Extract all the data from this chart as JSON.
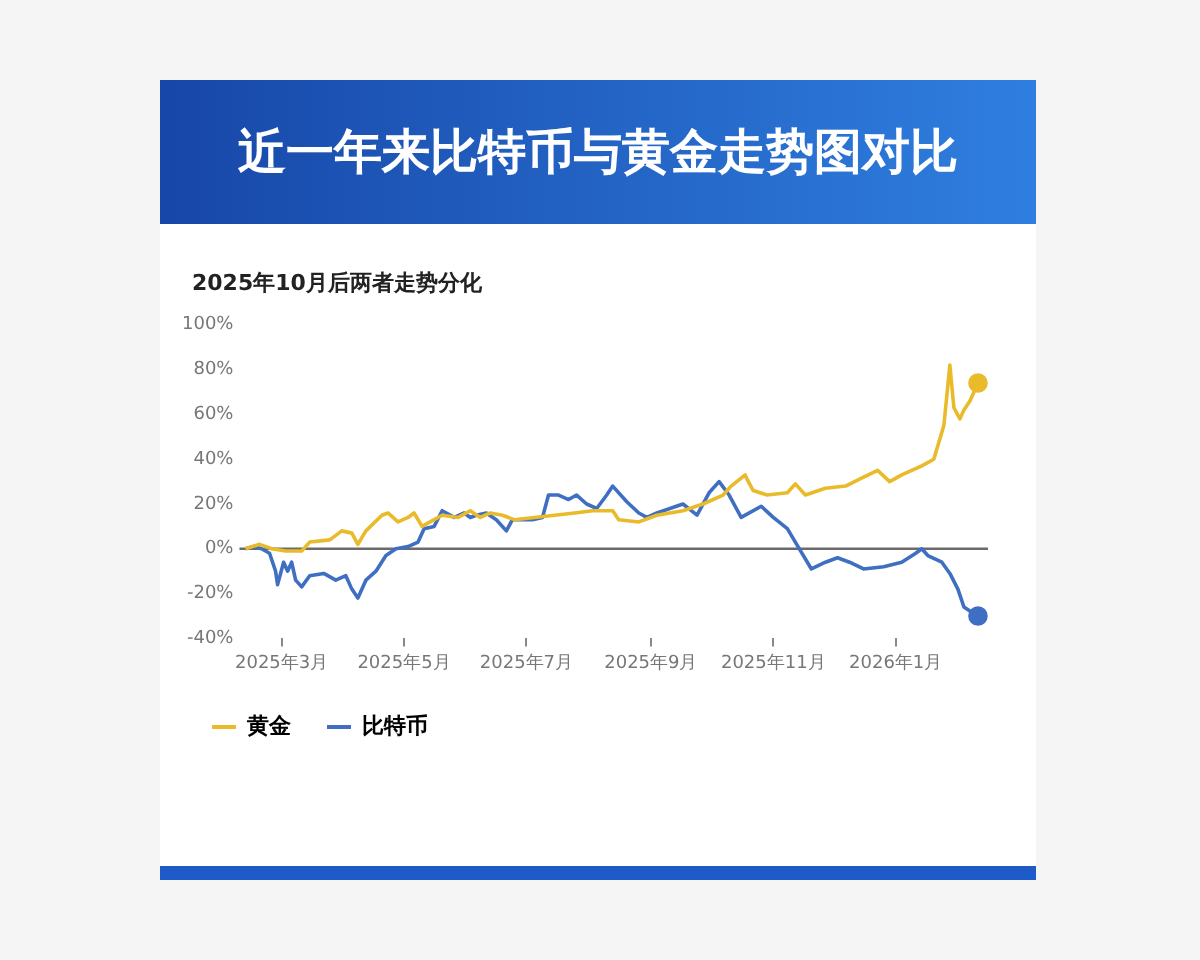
{
  "chart_data": {
    "type": "line",
    "title": "近一年来比特币与黄金走势图对比",
    "subtitle": "2025年10月后两者走势分化",
    "xlim": [
      "2025-02-08",
      "2026-02-16"
    ],
    "xticks": [
      {
        "value": "2025-03-01",
        "label": "2025年3月"
      },
      {
        "value": "2025-05-01",
        "label": "2025年5月"
      },
      {
        "value": "2025-07-01",
        "label": "2025年7月"
      },
      {
        "value": "2025-09-01",
        "label": "2025年9月"
      },
      {
        "value": "2025-11-01",
        "label": "2025年11月"
      },
      {
        "value": "2026-01-01",
        "label": "2026年1月"
      }
    ],
    "ylim": [
      -40,
      100
    ],
    "yticks": [
      {
        "value": -40,
        "label": "-40%"
      },
      {
        "value": -20,
        "label": "-20%"
      },
      {
        "value": 0,
        "label": "0%"
      },
      {
        "value": 20,
        "label": "20%"
      },
      {
        "value": 40,
        "label": "40%"
      },
      {
        "value": 60,
        "label": "60%"
      },
      {
        "value": 80,
        "label": "80%"
      },
      {
        "value": 100,
        "label": "100%"
      }
    ],
    "ref_lines": [
      {
        "axis": "y",
        "value": 0,
        "color": "#6b6b6b"
      }
    ],
    "legend": "bottom",
    "grid": false,
    "marker": "none",
    "line_style": "solid",
    "series": [
      {
        "name": "黄金",
        "color": "#e9bb2b",
        "x": [
          "2025-02-11",
          "2025-02-18",
          "2025-02-24",
          "2025-03-03",
          "2025-03-11",
          "2025-03-15",
          "2025-03-25",
          "2025-03-31",
          "2025-04-05",
          "2025-04-08",
          "2025-04-12",
          "2025-04-20",
          "2025-04-23",
          "2025-04-28",
          "2025-05-03",
          "2025-05-06",
          "2025-05-10",
          "2025-05-14",
          "2025-05-20",
          "2025-05-28",
          "2025-06-03",
          "2025-06-08",
          "2025-06-13",
          "2025-06-19",
          "2025-06-25",
          "2025-07-05",
          "2025-07-15",
          "2025-07-25",
          "2025-08-03",
          "2025-08-13",
          "2025-08-16",
          "2025-08-26",
          "2025-09-04",
          "2025-09-17",
          "2025-09-27",
          "2025-10-07",
          "2025-10-11",
          "2025-10-18",
          "2025-10-19",
          "2025-10-22",
          "2025-10-29",
          "2025-11-08",
          "2025-11-12",
          "2025-11-17",
          "2025-11-27",
          "2025-12-07",
          "2025-12-16",
          "2025-12-23",
          "2025-12-29",
          "2026-01-04",
          "2026-01-14",
          "2026-01-20",
          "2026-01-25",
          "2026-01-28",
          "2026-01-30",
          "2026-02-02",
          "2026-02-04",
          "2026-02-07",
          "2026-02-11"
        ],
        "values": [
          0,
          2,
          0,
          -1,
          -1,
          3,
          4,
          8,
          7,
          2,
          8,
          15,
          16,
          12,
          14,
          16,
          10,
          12,
          15,
          14,
          17,
          14,
          16,
          15,
          13,
          14,
          15,
          16,
          17,
          17,
          13,
          12,
          15,
          17,
          20,
          24,
          28,
          33,
          31,
          26,
          24,
          25,
          29,
          24,
          27,
          28,
          32,
          35,
          30,
          33,
          37,
          40,
          55,
          82,
          63,
          58,
          62,
          66,
          74
        ]
      },
      {
        "name": "比特币",
        "color": "#3f6fc2",
        "x": [
          "2025-02-11",
          "2025-02-15",
          "2025-02-19",
          "2025-02-23",
          "2025-02-26",
          "2025-02-27",
          "2025-03-02",
          "2025-03-04",
          "2025-03-06",
          "2025-03-08",
          "2025-03-11",
          "2025-03-15",
          "2025-03-22",
          "2025-03-28",
          "2025-04-02",
          "2025-04-05",
          "2025-04-08",
          "2025-04-12",
          "2025-04-17",
          "2025-04-22",
          "2025-04-27",
          "2025-05-03",
          "2025-05-08",
          "2025-05-11",
          "2025-05-16",
          "2025-05-20",
          "2025-05-26",
          "2025-05-31",
          "2025-06-03",
          "2025-06-06",
          "2025-06-11",
          "2025-06-16",
          "2025-06-21",
          "2025-06-24",
          "2025-06-29",
          "2025-07-04",
          "2025-07-09",
          "2025-07-12",
          "2025-07-17",
          "2025-07-22",
          "2025-07-26",
          "2025-07-31",
          "2025-08-05",
          "2025-08-10",
          "2025-08-13",
          "2025-08-20",
          "2025-08-26",
          "2025-08-30",
          "2025-09-04",
          "2025-09-17",
          "2025-09-24",
          "2025-09-30",
          "2025-10-05",
          "2025-10-10",
          "2025-10-16",
          "2025-10-26",
          "2025-11-01",
          "2025-11-08",
          "2025-11-14",
          "2025-11-20",
          "2025-11-27",
          "2025-12-03",
          "2025-12-09",
          "2025-12-16",
          "2025-12-26",
          "2026-01-04",
          "2026-01-11",
          "2026-01-14",
          "2026-01-17",
          "2026-01-24",
          "2026-01-28",
          "2026-02-01",
          "2026-02-04",
          "2026-02-09",
          "2026-02-11"
        ],
        "values": [
          0,
          1,
          0,
          -2,
          -10,
          -16,
          -6,
          -10,
          -6,
          -14,
          -17,
          -12,
          -11,
          -14,
          -12,
          -18,
          -22,
          -14,
          -10,
          -3,
          0,
          1,
          3,
          9,
          10,
          17,
          14,
          16,
          14,
          15,
          16,
          13,
          8,
          13,
          13,
          13,
          14,
          24,
          24,
          22,
          24,
          20,
          18,
          24,
          28,
          21,
          16,
          14,
          16,
          20,
          15,
          25,
          30,
          24,
          14,
          19,
          14,
          9,
          0,
          -9,
          -6,
          -4,
          -6,
          -9,
          -8,
          -6,
          -2,
          0,
          -3,
          -6,
          -11,
          -18,
          -26,
          -29,
          -30
        ]
      }
    ]
  }
}
